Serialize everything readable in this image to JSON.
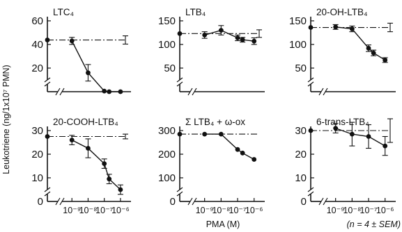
{
  "figure": {
    "ylabel": "Leukotriene (ng/1x10⁷ PMN)",
    "xlabel": "PMA (M)",
    "note": "(n = 4 ± SEM)"
  },
  "chart_data": [
    {
      "type": "line",
      "title": "LTC₄",
      "ylim": [
        0,
        60
      ],
      "yticks": [
        0,
        20,
        40,
        60
      ],
      "show_y_zero_label": false,
      "xscale": "log",
      "xlim": [
        1e-10,
        3e-06
      ],
      "xticks": [],
      "baseline": 43.8,
      "baseline_error": 3.5,
      "series": [
        {
          "x": [
            1e-09,
            1e-08,
            1e-07,
            2e-07,
            1e-06
          ],
          "y": [
            43,
            16,
            0.5,
            0,
            0
          ],
          "error": [
            3,
            7,
            0,
            0,
            0
          ]
        }
      ]
    },
    {
      "type": "line",
      "title": "LTB₄",
      "ylim": [
        0,
        150
      ],
      "yticks": [
        0,
        50,
        100,
        150
      ],
      "show_y_zero_label": false,
      "xscale": "log",
      "xlim": [
        1e-10,
        3e-06
      ],
      "xticks": [],
      "baseline": 123,
      "baseline_error": 8,
      "series": [
        {
          "x": [
            1e-09,
            1e-08,
            1e-07,
            2e-07,
            1e-06
          ],
          "y": [
            120,
            130,
            114,
            110,
            107
          ],
          "error": [
            7,
            10,
            6,
            5,
            7
          ]
        }
      ]
    },
    {
      "type": "line",
      "title": "20-OH-LTB₄",
      "ylim": [
        0,
        150
      ],
      "yticks": [
        0,
        50,
        100,
        150
      ],
      "show_y_zero_label": false,
      "xscale": "log",
      "xlim": [
        1e-10,
        3e-06
      ],
      "xticks": [],
      "baseline": 136,
      "baseline_error": 9,
      "series": [
        {
          "x": [
            1e-09,
            1e-08,
            1e-07,
            2e-07,
            1e-06
          ],
          "y": [
            137,
            133,
            92,
            82,
            67
          ],
          "error": [
            5,
            6,
            7,
            6,
            5
          ]
        }
      ]
    },
    {
      "type": "line",
      "title": "20-COOH-LTB₄",
      "ylim": [
        0,
        30
      ],
      "yticks": [
        0,
        10,
        20,
        30
      ],
      "show_y_zero_label": true,
      "xscale": "log",
      "xlim": [
        1e-10,
        3e-06
      ],
      "xticks": [
        {
          "value": 1e-09,
          "label": "10⁻⁹"
        },
        {
          "value": 1e-08,
          "label": "10⁻⁸"
        },
        {
          "value": 1e-07,
          "label": "10⁻⁷"
        },
        {
          "value": 1e-06,
          "label": "10⁻⁶"
        }
      ],
      "baseline": 27.5,
      "baseline_error": 1,
      "series": [
        {
          "x": [
            1e-09,
            1e-08,
            1e-07,
            2e-07,
            1e-06
          ],
          "y": [
            26,
            22.5,
            16,
            9.5,
            5
          ],
          "error": [
            2,
            4,
            2,
            2,
            2
          ]
        }
      ]
    },
    {
      "type": "line",
      "title": "Σ LTB₄ + ω-ox",
      "ylim": [
        0,
        300
      ],
      "yticks": [
        0,
        100,
        200,
        300
      ],
      "show_y_zero_label": true,
      "xscale": "log",
      "xlim": [
        1e-10,
        3e-06
      ],
      "xticks": [
        {
          "value": 1e-09,
          "label": "10⁻⁹"
        },
        {
          "value": 1e-08,
          "label": "10⁻⁸"
        },
        {
          "value": 1e-07,
          "label": "10⁻⁷"
        },
        {
          "value": 1e-06,
          "label": "10⁻⁶"
        }
      ],
      "baseline": 285,
      "baseline_error": 0,
      "series": [
        {
          "x": [
            1e-09,
            1e-08,
            1e-07,
            2e-07,
            1e-06
          ],
          "y": [
            285,
            285,
            220,
            205,
            178
          ],
          "error": [
            0,
            0,
            0,
            0,
            0
          ]
        }
      ]
    },
    {
      "type": "line",
      "title": "6-trans-LTB₄",
      "ylim": [
        0,
        30
      ],
      "yticks": [
        0,
        10,
        20,
        30
      ],
      "show_y_zero_label": true,
      "xscale": "log",
      "xlim": [
        1e-10,
        3e-06
      ],
      "xticks": [
        {
          "value": 1e-09,
          "label": "10⁻⁹"
        },
        {
          "value": 1e-08,
          "label": "10⁻⁸"
        },
        {
          "value": 1e-07,
          "label": "10⁻⁷"
        },
        {
          "value": 1e-06,
          "label": "10⁻⁶"
        }
      ],
      "baseline": 30,
      "baseline_error": 5,
      "series": [
        {
          "x": [
            1e-09,
            1e-08,
            1e-07,
            1e-06
          ],
          "y": [
            31,
            28.5,
            27.5,
            23.5
          ],
          "error": [
            2,
            5,
            5,
            4
          ]
        }
      ]
    }
  ]
}
